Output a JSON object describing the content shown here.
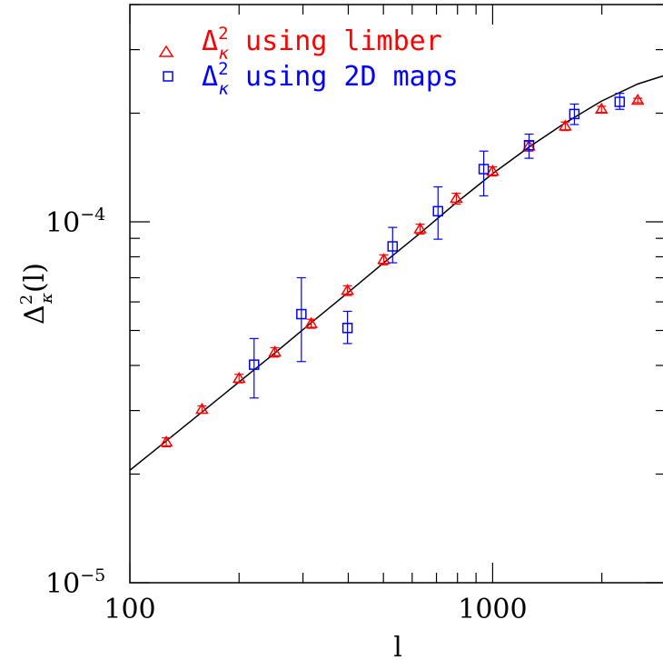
{
  "chart_data": {
    "type": "scatter",
    "xscale": "log",
    "yscale": "log",
    "xlim": [
      100,
      3000
    ],
    "ylim": [
      1e-05,
      0.0004
    ],
    "xlabel": "l",
    "ylabel_base": "Δ",
    "ylabel_sup": "2",
    "ylabel_sub": "κ",
    "ylabel_tail": "(l)",
    "x_tick_labels": [
      {
        "value": 100,
        "text": "100"
      },
      {
        "value": 1000,
        "text": "1000"
      }
    ],
    "y_tick_labels": [
      {
        "value": 1e-05,
        "base": "10",
        "exp": "−5"
      },
      {
        "value": 0.0001,
        "base": "10",
        "exp": "−4"
      }
    ],
    "grid": false,
    "legend_position": "top-left",
    "series": [
      {
        "name_pre": "Δ",
        "name_sup": "2",
        "name_sub": "κ",
        "name_post": " using limber",
        "marker": "triangle",
        "color": "#ff0000",
        "points": [
          {
            "x": 126,
            "y": 2.45e-05,
            "yerr": [
              2.38e-05,
              2.52e-05
            ]
          },
          {
            "x": 158,
            "y": 3.02e-05,
            "yerr": [
              2.95e-05,
              3.09e-05
            ]
          },
          {
            "x": 200,
            "y": 3.68e-05,
            "yerr": [
              3.58e-05,
              3.78e-05
            ]
          },
          {
            "x": 251,
            "y": 4.35e-05,
            "yerr": [
              4.22e-05,
              4.48e-05
            ]
          },
          {
            "x": 316,
            "y": 5.22e-05,
            "yerr": [
              5.07e-05,
              5.37e-05
            ]
          },
          {
            "x": 398,
            "y": 6.45e-05,
            "yerr": [
              6.25e-05,
              6.65e-05
            ]
          },
          {
            "x": 501,
            "y": 7.85e-05,
            "yerr": [
              7.6e-05,
              8.1e-05
            ]
          },
          {
            "x": 631,
            "y": 9.55e-05,
            "yerr": [
              9.25e-05,
              9.85e-05
            ]
          },
          {
            "x": 794,
            "y": 0.000116,
            "yerr": [
              0.000112,
              0.00012
            ]
          },
          {
            "x": 1000,
            "y": 0.000138,
            "yerr": [
              0.000134,
              0.000142
            ]
          },
          {
            "x": 1259,
            "y": 0.000162,
            "yerr": [
              0.000157,
              0.000167
            ]
          },
          {
            "x": 1585,
            "y": 0.000184,
            "yerr": [
              0.000179,
              0.000189
            ]
          },
          {
            "x": 1995,
            "y": 0.000205,
            "yerr": [
              0.000201,
              0.000209
            ]
          },
          {
            "x": 2512,
            "y": 0.000217,
            "yerr": [
              0.000214,
              0.00022
            ]
          }
        ]
      },
      {
        "name_pre": "Δ",
        "name_sup": "2",
        "name_sub": "κ",
        "name_post": " using 2D maps",
        "marker": "square",
        "color": "#0000ff",
        "points": [
          {
            "x": 220,
            "y": 4.02e-05,
            "yerr": [
              3.25e-05,
              4.75e-05
            ]
          },
          {
            "x": 297,
            "y": 5.55e-05,
            "yerr": [
              4.1e-05,
              7e-05
            ]
          },
          {
            "x": 398,
            "y": 5.08e-05,
            "yerr": [
              4.6e-05,
              5.65e-05
            ]
          },
          {
            "x": 530,
            "y": 8.55e-05,
            "yerr": [
              7.7e-05,
              9.65e-05
            ]
          },
          {
            "x": 707,
            "y": 0.000107,
            "yerr": [
              8.95e-05,
              0.000125
            ]
          },
          {
            "x": 945,
            "y": 0.00014,
            "yerr": [
              0.000118,
              0.000157
            ]
          },
          {
            "x": 1260,
            "y": 0.000163,
            "yerr": [
              0.00015,
              0.000175
            ]
          },
          {
            "x": 1680,
            "y": 0.000199,
            "yerr": [
              0.000186,
              0.000212
            ]
          },
          {
            "x": 2240,
            "y": 0.000215,
            "yerr": [
              0.000205,
              0.000227
            ]
          }
        ]
      },
      {
        "type": "line",
        "color": "#000000",
        "points": [
          {
            "x": 100,
            "y": 2.05e-05
          },
          {
            "x": 126,
            "y": 2.47e-05
          },
          {
            "x": 158,
            "y": 2.97e-05
          },
          {
            "x": 200,
            "y": 3.6e-05
          },
          {
            "x": 251,
            "y": 4.33e-05
          },
          {
            "x": 316,
            "y": 5.25e-05
          },
          {
            "x": 398,
            "y": 6.35e-05
          },
          {
            "x": 501,
            "y": 7.7e-05
          },
          {
            "x": 631,
            "y": 9.3e-05
          },
          {
            "x": 794,
            "y": 0.000113
          },
          {
            "x": 1000,
            "y": 0.000136
          },
          {
            "x": 1259,
            "y": 0.000161
          },
          {
            "x": 1585,
            "y": 0.000188
          },
          {
            "x": 1995,
            "y": 0.000216
          },
          {
            "x": 2512,
            "y": 0.000241
          },
          {
            "x": 3000,
            "y": 0.000255
          }
        ]
      }
    ]
  }
}
